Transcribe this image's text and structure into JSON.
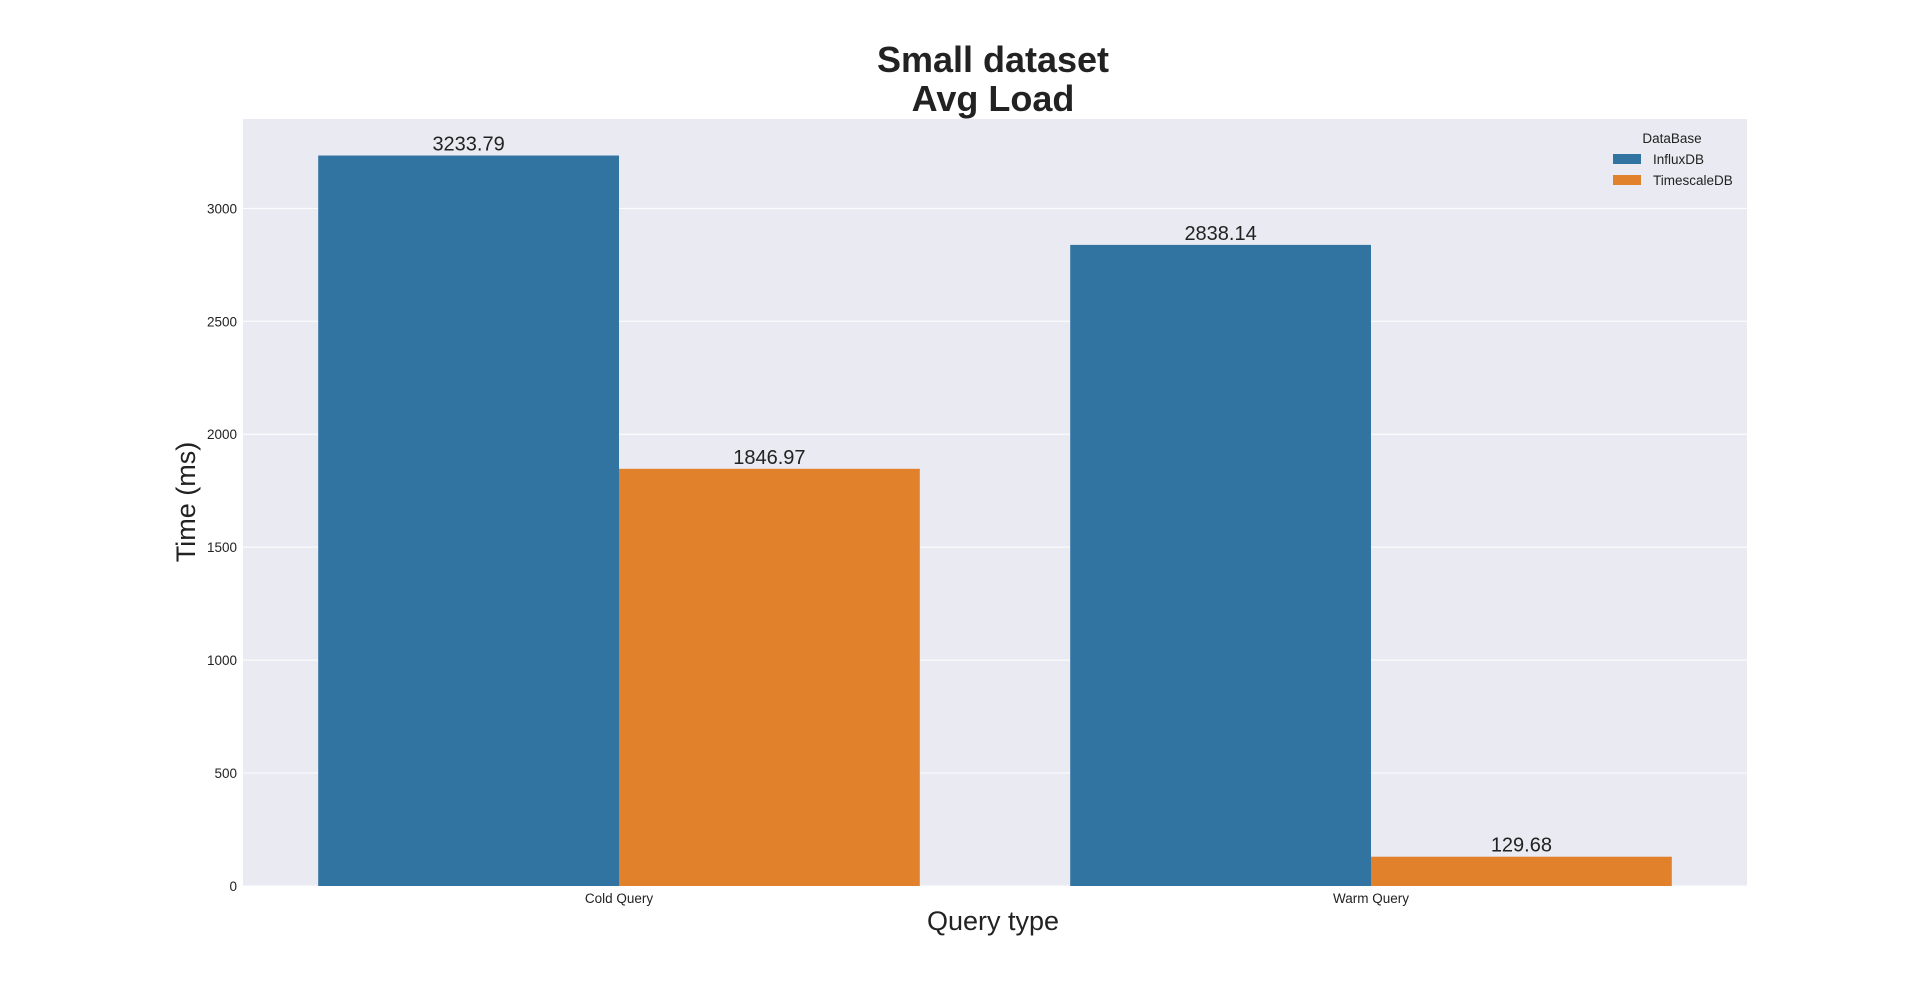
{
  "chart_data": {
    "type": "bar",
    "title_lines": [
      "Small dataset",
      "Avg Load"
    ],
    "xlabel": "Query type",
    "ylabel": "Time (ms)",
    "categories": [
      "Cold Query",
      "Warm Query"
    ],
    "series": [
      {
        "name": "InfluxDB",
        "values": [
          3233.79,
          2838.14
        ],
        "color": "#3274a1"
      },
      {
        "name": "TimescaleDB",
        "values": [
          1846.97,
          129.68
        ],
        "color": "#e1812c"
      }
    ],
    "data_labels": [
      [
        "3233.79",
        "2838.14"
      ],
      [
        "1846.97",
        "129.68"
      ]
    ],
    "ylim": [
      0,
      3395.48
    ],
    "yticks": [
      0,
      500,
      1000,
      1500,
      2000,
      2500,
      3000
    ],
    "ytick_labels": [
      "0",
      "500",
      "1000",
      "1500",
      "2000",
      "2500",
      "3000"
    ],
    "grid": true,
    "legend": {
      "title": "DataBase",
      "position": "top-right"
    },
    "colors": {
      "plot_background": "#eaeaf2",
      "grid": "#ffffff",
      "text": "#222222"
    }
  }
}
